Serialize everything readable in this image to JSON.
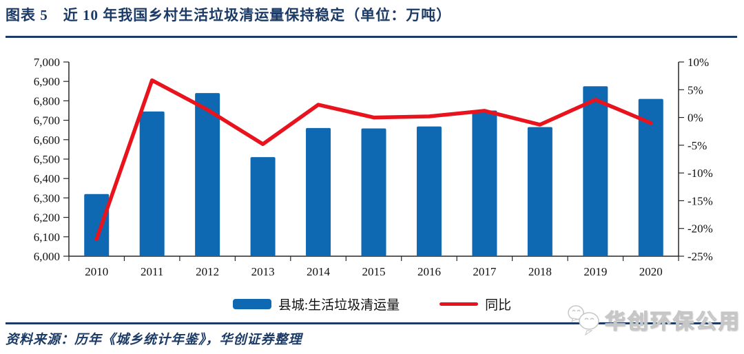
{
  "header": {
    "title": "图表 5　近 10 年我国乡村生活垃圾清运量保持稳定（单位：万吨）"
  },
  "chart_data": {
    "type": "bar",
    "subtype": "bar+line-dual-axis",
    "categories": [
      "2010",
      "2011",
      "2012",
      "2013",
      "2014",
      "2015",
      "2016",
      "2017",
      "2018",
      "2019",
      "2020"
    ],
    "series": [
      {
        "name": "县城:生活垃圾清运量",
        "type": "bar",
        "axis": "left",
        "color": "#0e68b2",
        "values": [
          6320,
          6745,
          6840,
          6510,
          6660,
          6658,
          6668,
          6750,
          6665,
          6875,
          6810
        ]
      },
      {
        "name": "同比",
        "type": "line",
        "axis": "right",
        "color": "#e8131d",
        "values": [
          -21.9,
          6.7,
          1.4,
          -4.8,
          2.3,
          0.0,
          0.2,
          1.2,
          -1.3,
          3.2,
          -1.0
        ]
      }
    ],
    "left_axis": {
      "min": 6000,
      "max": 7000,
      "step": 100,
      "tick_labels": [
        "7,000",
        "6,900",
        "6,800",
        "6,700",
        "6,600",
        "6,500",
        "6,400",
        "6,300",
        "6,200",
        "6,100",
        "6,000"
      ]
    },
    "right_axis": {
      "min": -25,
      "max": 10,
      "step": 5,
      "tick_labels": [
        "10%",
        "5%",
        "0%",
        "-5%",
        "-10%",
        "-15%",
        "-20%",
        "-25%"
      ]
    },
    "legend_position": "bottom",
    "grid": false
  },
  "footer": {
    "source": "资料来源：历年《城乡统计年鉴》，华创证券整理"
  },
  "watermark": {
    "label": "华创环保公用",
    "icon": "wechat-bubbles-icon"
  },
  "colors": {
    "title_navy": "#1b3a66",
    "rule_navy": "#1b3a66",
    "axis_ink": "#262626",
    "bar_blue": "#0e68b2",
    "line_red": "#e8131d",
    "watermark_gray": "#c6c6c6"
  }
}
